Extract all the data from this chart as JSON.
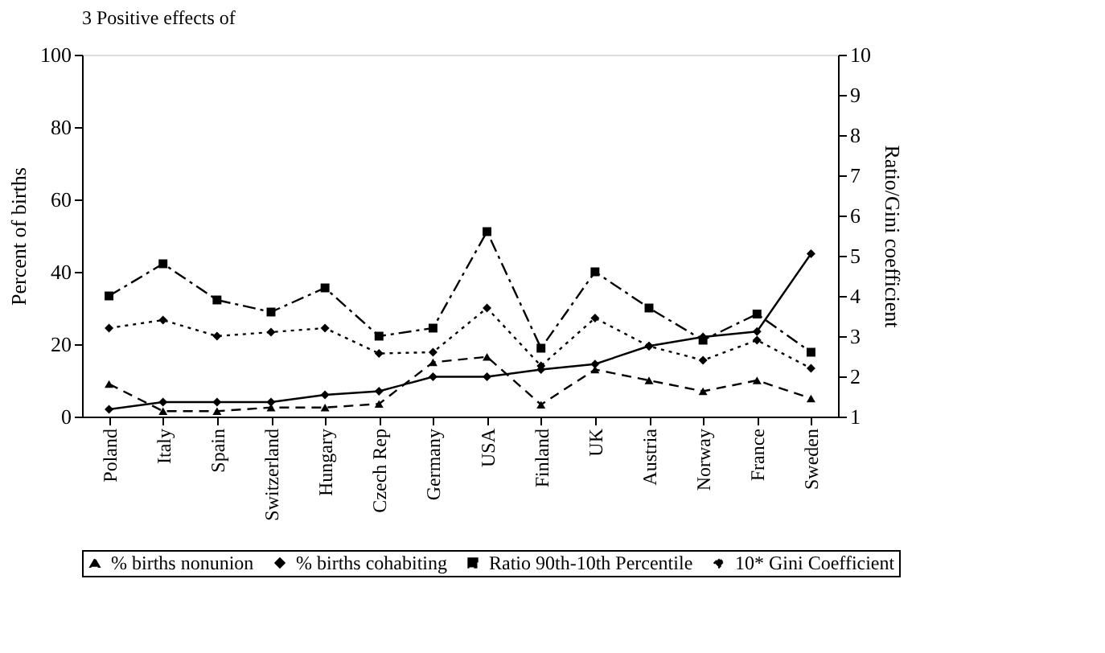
{
  "chart_data": {
    "type": "line",
    "title": "3 Positive effects of",
    "ylabel": "Percent of births",
    "y2label": "Ratio/Gini coefficient",
    "categories": [
      "Poland",
      "Italy",
      "Spain",
      "Switzerland",
      "Hungary",
      "Czech Rep",
      "Germany",
      "USA",
      "Finland",
      "UK",
      "Austria",
      "Norway",
      "France",
      "Sweden"
    ],
    "ylim": [
      0,
      100
    ],
    "yticks": [
      0,
      20,
      40,
      60,
      80,
      100
    ],
    "y2lim": [
      1,
      10
    ],
    "y2ticks": [
      1,
      2,
      3,
      4,
      5,
      6,
      7,
      8,
      9,
      10
    ],
    "grid": false,
    "legend": "bottom",
    "series": [
      {
        "name": "% births nonunion",
        "color": "#000000",
        "marker": "triangle",
        "line_style": "dashed",
        "values": [
          9,
          1.5,
          1.5,
          2.5,
          2.5,
          3.5,
          15,
          16.5,
          3.3,
          13,
          10,
          7,
          10,
          5
        ]
      },
      {
        "name": "% births cohabiting",
        "color": "#000000",
        "marker": "diamond",
        "line_style": "solid",
        "values": [
          2,
          4,
          4,
          4,
          6,
          7,
          11,
          11,
          13,
          14.5,
          19.5,
          22,
          23.5,
          45
        ]
      },
      {
        "name": "Ratio 90th-10th Percentile",
        "color": "#000000",
        "marker": "square",
        "line_style": "dashdot",
        "axis": "y2",
        "values": [
          4.0,
          4.8,
          3.9,
          3.6,
          4.2,
          3.0,
          3.2,
          5.6,
          2.7,
          4.6,
          3.7,
          2.9,
          3.55,
          2.6
        ]
      },
      {
        "name": "10* Gini Coefficient",
        "color": "#000000",
        "marker": "diamond",
        "line_style": "dotted",
        "axis": "y2",
        "values": [
          3.2,
          3.4,
          3.0,
          3.1,
          3.2,
          2.57,
          2.6,
          3.7,
          2.26,
          3.45,
          2.75,
          2.4,
          2.9,
          2.2
        ]
      }
    ]
  }
}
